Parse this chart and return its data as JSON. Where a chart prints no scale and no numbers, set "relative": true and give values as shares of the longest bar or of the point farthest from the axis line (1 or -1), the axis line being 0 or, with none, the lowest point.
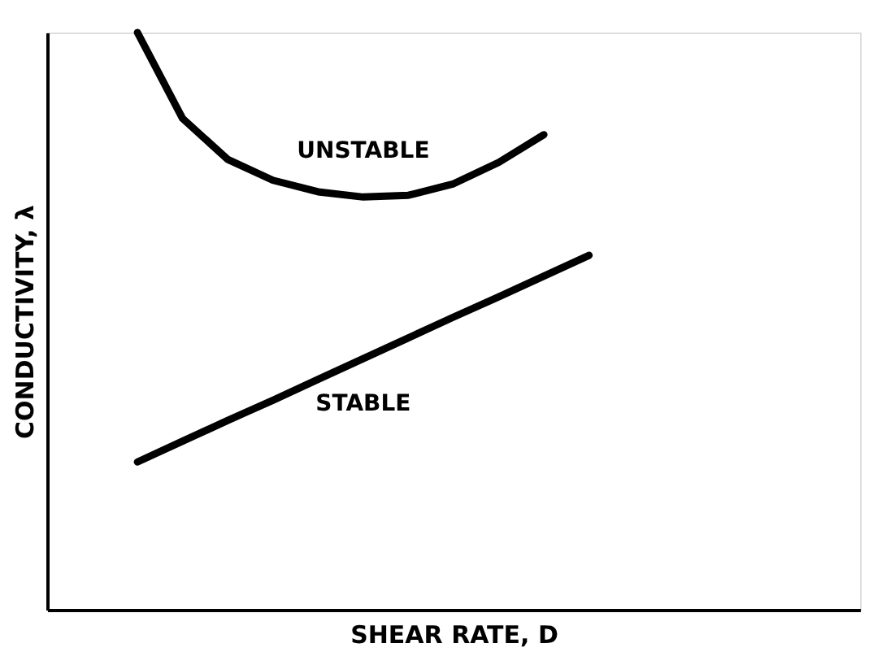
{
  "chart_data": {
    "type": "line",
    "relative": true,
    "xlabel": "SHEAR RATE, D",
    "ylabel": "CONDUCTIVITY, λ",
    "categories": [
      null,
      null,
      null,
      null,
      null,
      null,
      null,
      null,
      null,
      null,
      null,
      null,
      null,
      null,
      null,
      null,
      null,
      null,
      null
    ],
    "tick_labels": false,
    "marker": "none",
    "line_style": "solid",
    "series": [
      {
        "name": "UNSTABLE",
        "color": "#000000",
        "values": [
          null,
          null,
          1.0,
          0.851,
          0.78,
          0.744,
          0.724,
          0.715,
          0.718,
          0.738,
          0.775,
          0.823,
          null,
          null,
          null,
          null,
          null,
          null,
          null
        ]
      },
      {
        "name": "STABLE",
        "color": "#000000",
        "values": [
          null,
          null,
          0.256,
          0.292,
          0.328,
          0.363,
          0.399,
          0.435,
          0.471,
          0.507,
          0.542,
          0.578,
          0.614,
          null,
          null,
          null,
          null,
          null,
          null
        ]
      }
    ]
  }
}
